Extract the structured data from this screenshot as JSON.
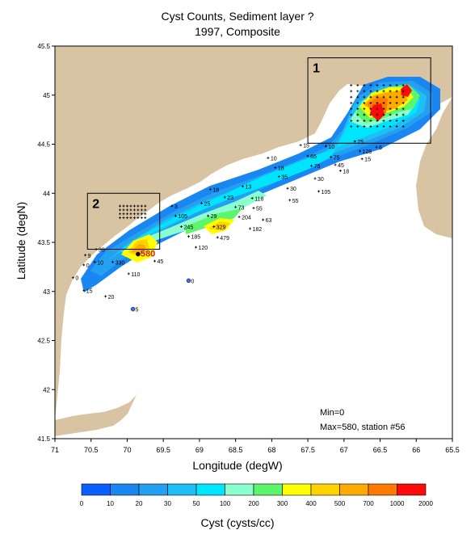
{
  "chart_data": {
    "type": "heatmap",
    "title": "Cyst Counts, Sediment layer ?",
    "subtitle": "1997, Composite",
    "xlabel": "Longitude (degW)",
    "ylabel": "Latitude (degN)",
    "xlim": [
      71,
      65.5
    ],
    "ylim": [
      41.5,
      45.5
    ],
    "x_ticks": [
      71,
      70.5,
      70,
      69.5,
      69,
      68.5,
      68,
      67.5,
      67,
      66.5,
      66,
      65.5
    ],
    "y_ticks": [
      41.5,
      42,
      42.5,
      43,
      43.5,
      44,
      44.5,
      45,
      45.5
    ],
    "colorbar": {
      "label": "Cyst (cysts/cc)",
      "ticks": [
        "0",
        "10",
        "20",
        "30",
        "50",
        "100",
        "200",
        "300",
        "400",
        "500",
        "700",
        "1000",
        "2000"
      ],
      "colors": [
        "#0a60ff",
        "#1a86f2",
        "#24a0f0",
        "#1fbef4",
        "#00e5ff",
        "#8cffcf",
        "#5cf56c",
        "#ffff00",
        "#ffd200",
        "#ffaa00",
        "#ff7a00",
        "#ff0a0a"
      ]
    },
    "annotations": {
      "min": "Min=0",
      "max": "Max=580, station #56"
    },
    "boxes": [
      {
        "label": "1",
        "lon": [
          67.5,
          65.8
        ],
        "lat": [
          45.38,
          44.51
        ]
      },
      {
        "label": "2",
        "lon": [
          70.55,
          69.55
        ],
        "lat": [
          44.0,
          43.43
        ]
      }
    ],
    "stations": [
      {
        "lon": 70.75,
        "lat": 43.14,
        "v": "0"
      },
      {
        "lon": 70.6,
        "lat": 43.27,
        "v": "0"
      },
      {
        "lon": 70.58,
        "lat": 43.37,
        "v": "9"
      },
      {
        "lon": 70.45,
        "lat": 43.3,
        "v": "10"
      },
      {
        "lon": 70.43,
        "lat": 43.43,
        "v": "30"
      },
      {
        "lon": 70.2,
        "lat": 43.3,
        "v": "330"
      },
      {
        "lon": 69.98,
        "lat": 43.18,
        "v": "110"
      },
      {
        "lon": 69.85,
        "lat": 43.38,
        "v": "580"
      },
      {
        "lon": 69.62,
        "lat": 43.31,
        "v": "45"
      },
      {
        "lon": 70.6,
        "lat": 43.01,
        "v": "15"
      },
      {
        "lon": 70.3,
        "lat": 42.95,
        "v": "20"
      },
      {
        "lon": 69.15,
        "lat": 43.11,
        "v": "0"
      },
      {
        "lon": 69.92,
        "lat": 42.82,
        "v": "5"
      },
      {
        "lon": 69.38,
        "lat": 43.87,
        "v": "3"
      },
      {
        "lon": 69.33,
        "lat": 43.77,
        "v": "105"
      },
      {
        "lon": 69.25,
        "lat": 43.66,
        "v": "245"
      },
      {
        "lon": 69.15,
        "lat": 43.56,
        "v": "185"
      },
      {
        "lon": 69.05,
        "lat": 43.45,
        "v": "120"
      },
      {
        "lon": 68.97,
        "lat": 43.9,
        "v": "25"
      },
      {
        "lon": 68.88,
        "lat": 43.77,
        "v": "29"
      },
      {
        "lon": 68.8,
        "lat": 43.66,
        "v": "329"
      },
      {
        "lon": 68.75,
        "lat": 43.55,
        "v": "479"
      },
      {
        "lon": 68.85,
        "lat": 44.04,
        "v": "18"
      },
      {
        "lon": 68.65,
        "lat": 43.96,
        "v": "23"
      },
      {
        "lon": 68.5,
        "lat": 43.86,
        "v": "73"
      },
      {
        "lon": 68.45,
        "lat": 43.76,
        "v": "204"
      },
      {
        "lon": 68.3,
        "lat": 43.64,
        "v": "182"
      },
      {
        "lon": 68.4,
        "lat": 44.07,
        "v": "13"
      },
      {
        "lon": 68.27,
        "lat": 43.95,
        "v": "118"
      },
      {
        "lon": 68.25,
        "lat": 43.85,
        "v": "55"
      },
      {
        "lon": 68.12,
        "lat": 43.73,
        "v": "63"
      },
      {
        "lon": 68.05,
        "lat": 44.36,
        "v": "10"
      },
      {
        "lon": 67.95,
        "lat": 44.26,
        "v": "18"
      },
      {
        "lon": 67.9,
        "lat": 44.17,
        "v": "35"
      },
      {
        "lon": 67.78,
        "lat": 44.05,
        "v": "30"
      },
      {
        "lon": 67.75,
        "lat": 43.93,
        "v": "55"
      },
      {
        "lon": 67.6,
        "lat": 44.49,
        "v": "15"
      },
      {
        "lon": 67.5,
        "lat": 44.38,
        "v": "65"
      },
      {
        "lon": 67.45,
        "lat": 44.28,
        "v": "75"
      },
      {
        "lon": 67.4,
        "lat": 44.15,
        "v": "30"
      },
      {
        "lon": 67.35,
        "lat": 44.02,
        "v": "105"
      },
      {
        "lon": 67.25,
        "lat": 44.48,
        "v": "10"
      },
      {
        "lon": 67.18,
        "lat": 44.37,
        "v": "75"
      },
      {
        "lon": 67.12,
        "lat": 44.29,
        "v": "45"
      },
      {
        "lon": 67.05,
        "lat": 44.23,
        "v": "18"
      },
      {
        "lon": 66.85,
        "lat": 44.53,
        "v": "75"
      },
      {
        "lon": 66.78,
        "lat": 44.43,
        "v": "128"
      },
      {
        "lon": 66.75,
        "lat": 44.35,
        "v": "15"
      },
      {
        "lon": 66.55,
        "lat": 44.47,
        "v": "6"
      }
    ]
  }
}
